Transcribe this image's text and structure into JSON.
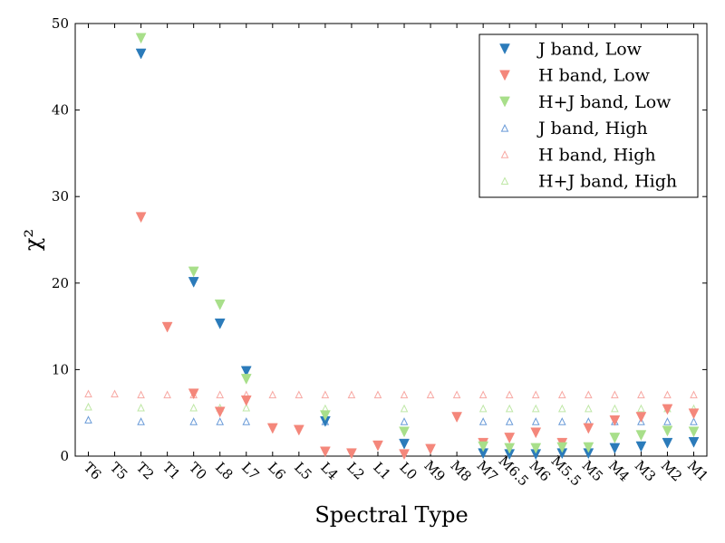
{
  "chart_data": {
    "type": "scatter",
    "title": "",
    "xlabel": "Spectral Type",
    "ylabel": "χ²",
    "ylim": [
      0,
      50
    ],
    "yticks": [
      0,
      10,
      20,
      30,
      40,
      50
    ],
    "grid": false,
    "legend_position": "top-right",
    "categories": [
      "T6",
      "T5",
      "T2",
      "T1",
      "T0",
      "L8",
      "L7",
      "L6",
      "L5",
      "L4",
      "L2",
      "L1",
      "L0",
      "M9",
      "M8",
      "M7",
      "M6.5",
      "M6",
      "M5.5",
      "M5",
      "M4",
      "M3",
      "M2",
      "M1"
    ],
    "series": [
      {
        "name": "J band, Low",
        "marker": "filled-down-triangle",
        "color": "#2b7bba",
        "values": [
          null,
          null,
          46.5,
          null,
          20.1,
          15.3,
          9.8,
          null,
          null,
          4.0,
          null,
          null,
          1.4,
          null,
          null,
          0.3,
          0.2,
          0.2,
          0.3,
          0.3,
          0.9,
          1.1,
          1.5,
          1.6
        ]
      },
      {
        "name": "H band, Low",
        "marker": "filled-down-triangle",
        "color": "#f4877b",
        "values": [
          null,
          null,
          27.6,
          14.9,
          7.2,
          5.1,
          6.4,
          3.2,
          3.0,
          0.5,
          0.3,
          1.2,
          0.2,
          0.8,
          4.5,
          1.5,
          2.1,
          2.7,
          1.5,
          3.2,
          4.1,
          4.5,
          5.4,
          4.9
        ]
      },
      {
        "name": "H+J band, Low",
        "marker": "filled-down-triangle",
        "color": "#a8df8a",
        "values": [
          null,
          null,
          48.3,
          null,
          21.3,
          17.5,
          8.9,
          null,
          null,
          4.7,
          null,
          null,
          2.8,
          null,
          null,
          1.1,
          0.9,
          0.9,
          1.0,
          1.0,
          2.1,
          2.4,
          2.9,
          2.8
        ]
      },
      {
        "name": "J band, High",
        "marker": "open-up-triangle",
        "color": "#6a9bd8",
        "values": [
          4.2,
          null,
          4.0,
          null,
          4.0,
          4.0,
          4.0,
          null,
          null,
          4.0,
          null,
          null,
          4.0,
          null,
          null,
          4.0,
          4.0,
          4.0,
          4.0,
          4.0,
          4.0,
          4.0,
          4.0,
          4.0
        ]
      },
      {
        "name": "H band, High",
        "marker": "open-up-triangle",
        "color": "#f7a8a3",
        "values": [
          7.2,
          7.2,
          7.1,
          7.1,
          7.1,
          7.1,
          7.1,
          7.1,
          7.1,
          7.1,
          7.1,
          7.1,
          7.1,
          7.1,
          7.1,
          7.1,
          7.1,
          7.1,
          7.1,
          7.1,
          7.1,
          7.1,
          7.1,
          7.1
        ]
      },
      {
        "name": "H+J band, High",
        "marker": "open-up-triangle",
        "color": "#bfe7a6",
        "values": [
          5.7,
          null,
          5.6,
          null,
          5.6,
          5.6,
          5.6,
          null,
          null,
          5.5,
          null,
          null,
          5.5,
          null,
          null,
          5.5,
          5.5,
          5.5,
          5.5,
          5.5,
          5.5,
          5.5,
          5.5,
          5.5
        ]
      }
    ]
  }
}
